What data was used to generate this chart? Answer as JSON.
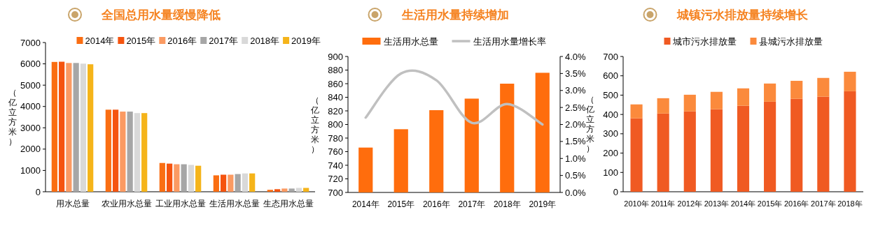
{
  "chart_data": [
    {
      "type": "bar",
      "title": "全国总用水量缓慢降低",
      "ylabel": "（亿立方米）",
      "categories": [
        "用水总量",
        "农业用水总量",
        "工业用水总量",
        "生活用水总量",
        "生态用水总量"
      ],
      "ylim": [
        0,
        7000
      ],
      "yticks": [
        0,
        1000,
        2000,
        3000,
        4000,
        5000,
        6000,
        7000
      ],
      "legend": "top right",
      "series": [
        {
          "name": "2014年",
          "color": "#fa6e12",
          "values": [
            6090,
            3850,
            1350,
            770,
            90
          ]
        },
        {
          "name": "2015年",
          "color": "#f5540f",
          "values": [
            6100,
            3850,
            1320,
            800,
            120
          ]
        },
        {
          "name": "2016年",
          "color": "#fb9a62",
          "values": [
            6040,
            3760,
            1290,
            800,
            150
          ]
        },
        {
          "name": "2017年",
          "color": "#a6a6a6",
          "values": [
            6040,
            3760,
            1290,
            830,
            150
          ]
        },
        {
          "name": "2018年",
          "color": "#d9d9d9",
          "values": [
            6010,
            3690,
            1260,
            860,
            180
          ]
        },
        {
          "name": "2019年",
          "color": "#f5b41a",
          "values": [
            5980,
            3690,
            1220,
            860,
            180
          ]
        }
      ]
    },
    {
      "type": "bar",
      "title": "生活用水量持续增加",
      "ylabel": "（亿立方米）",
      "categories": [
        "2014年",
        "2015年",
        "2016年",
        "2017年",
        "2018年",
        "2019年"
      ],
      "ylim": [
        700,
        900
      ],
      "yticks": [
        700,
        720,
        740,
        760,
        780,
        800,
        820,
        840,
        860,
        880,
        900
      ],
      "y2lim": [
        0,
        4
      ],
      "y2ticks": [
        {
          "value": 0,
          "label": "0.0%"
        },
        {
          "value": 0.5,
          "label": "0.5%"
        },
        {
          "value": 1,
          "label": "1.0%"
        },
        {
          "value": 1.5,
          "label": "1.5%"
        },
        {
          "value": 2,
          "label": "2.0%"
        },
        {
          "value": 2.5,
          "label": "2.5%"
        },
        {
          "value": 3,
          "label": "3.0%"
        },
        {
          "value": 3.5,
          "label": "3.5%"
        },
        {
          "value": 4,
          "label": "4.0%"
        }
      ],
      "legend": "top",
      "series": [
        {
          "name": "生活用水总量",
          "type": "bar",
          "color": "#ff6d0d",
          "values": [
            766,
            793,
            821,
            838,
            860,
            876
          ]
        },
        {
          "name": "生活用水量增长率",
          "type": "line",
          "axis": "y2",
          "color": "#c0c0c0",
          "values": [
            2.2,
            3.5,
            3.3,
            2.05,
            2.6,
            2.0
          ]
        }
      ]
    },
    {
      "type": "bar",
      "title": "城镇污水排放量持续增长",
      "ylabel": "（亿立方米）",
      "categories": [
        "2010年",
        "2011年",
        "2012年",
        "2013年",
        "2014年",
        "2015年",
        "2016年",
        "2017年",
        "2018年"
      ],
      "ylim": [
        0,
        700
      ],
      "yticks": [
        0,
        100,
        200,
        300,
        400,
        500,
        600,
        700
      ],
      "stacked": true,
      "legend": "top",
      "series": [
        {
          "name": "城市污水排放量",
          "color": "#f05a22",
          "values": [
            380,
            405,
            416,
            427,
            445,
            466,
            481,
            492,
            520
          ]
        },
        {
          "name": "县城污水排放量",
          "color": "#fb8a3c",
          "values": [
            72,
            79,
            86,
            90,
            90,
            94,
            93,
            97,
            101
          ]
        }
      ]
    }
  ]
}
